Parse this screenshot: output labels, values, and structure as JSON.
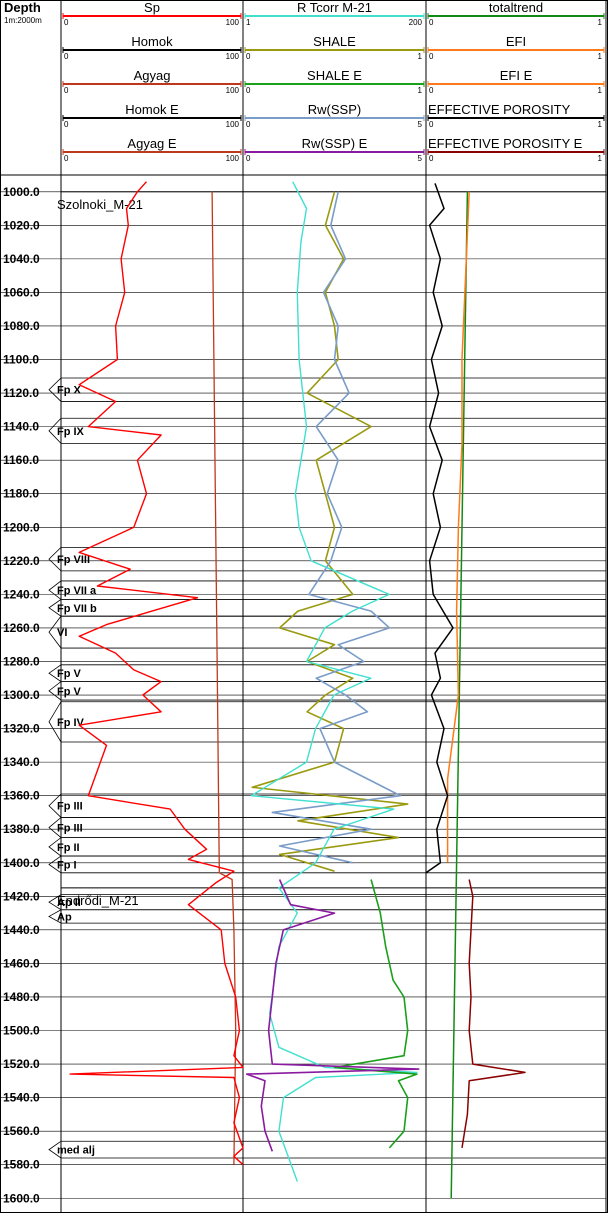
{
  "header": {
    "depth_title": "Depth",
    "depth_scale": "1m:2000m",
    "columns": [
      {
        "curves": [
          {
            "name": "Sp",
            "min": "0",
            "max": "100",
            "color": "#ff0000"
          },
          {
            "name": "Homok",
            "min": "0",
            "max": "100",
            "color": "#000000"
          },
          {
            "name": "Agyag",
            "min": "0",
            "max": "100",
            "color": "#c0381c"
          },
          {
            "name": "Homok  E",
            "min": "0",
            "max": "100",
            "color": "#000000"
          },
          {
            "name": "Agyag  E",
            "min": "0",
            "max": "100",
            "color": "#c0381c"
          }
        ]
      },
      {
        "curves": [
          {
            "name": "R  Tcorr  M-21",
            "min": "1",
            "max": "200",
            "color": "#40e0d0"
          },
          {
            "name": "SHALE",
            "min": "0",
            "max": "1",
            "color": "#9a9a10"
          },
          {
            "name": "SHALE  E",
            "min": "0",
            "max": "1",
            "color": "#1aa01a"
          },
          {
            "name": "Rw(SSP)",
            "min": "0",
            "max": "5",
            "color": "#7a9cc8"
          },
          {
            "name": "Rw(SSP)  E",
            "min": "0",
            "max": "5",
            "color": "#8a1aa0"
          }
        ]
      },
      {
        "curves": [
          {
            "name": "totaltrend",
            "min": "0",
            "max": "1",
            "color": "#138a13"
          },
          {
            "name": "EFI",
            "min": "0",
            "max": "1",
            "color": "#ff7a1a"
          },
          {
            "name": "EFI  E",
            "min": "0",
            "max": "1",
            "color": "#ff7a1a"
          },
          {
            "name": "EFFECTIVE  POROSITY",
            "min": "0",
            "max": "1",
            "color": "#000000"
          },
          {
            "name": "EFFECTIVE  POROSITY  E",
            "min": "0",
            "max": "1",
            "color": "#8b0000"
          }
        ]
      }
    ]
  },
  "colors": {
    "sp": "#ff0000",
    "agyag": "#c0381c",
    "rt": "#40e0d0",
    "shale": "#9a9a10",
    "shale_e": "#1aa01a",
    "rw": "#7a9cc8",
    "rw_e": "#8a1aa0",
    "efi": "#ff7a1a",
    "totaltrend": "#138a13",
    "eff_por": "#000000",
    "eff_por_e": "#8b0000"
  },
  "chart_data": {
    "type": "well-log",
    "depth_ticks": [
      "1000.0",
      "1020.0",
      "1040.0",
      "1060.0",
      "1080.0",
      "1100.0",
      "1120.0",
      "1140.0",
      "1160.0",
      "1180.0",
      "1200.0",
      "1220.0",
      "1240.0",
      "1260.0",
      "1280.0",
      "1300.0",
      "1320.0",
      "1340.0",
      "1360.0",
      "1380.0",
      "1400.0",
      "1420.0",
      "1440.0",
      "1460.0",
      "1480.0",
      "1500.0",
      "1520.0",
      "1540.0",
      "1560.0",
      "1580.0",
      "1600.0"
    ],
    "depth_range": [
      990,
      1607
    ],
    "formations": [
      {
        "name": "Szolnoki_M-21",
        "depth": 1000
      },
      {
        "name": "Endrődi_M-21",
        "depth": 1415
      }
    ],
    "zones": [
      {
        "label": "Fp X",
        "top": 1111,
        "bottom": 1125
      },
      {
        "label": "Fp IX",
        "top": 1135,
        "bottom": 1150
      },
      {
        "label": "Fp VIII",
        "top": 1212,
        "bottom": 1226
      },
      {
        "label": "Fp VII a",
        "top": 1232,
        "bottom": 1243
      },
      {
        "label": "Fp VII b",
        "top": 1243,
        "bottom": 1253
      },
      {
        "label": "VI",
        "top": 1253,
        "bottom": 1272
      },
      {
        "label": "Fp V",
        "top": 1282,
        "bottom": 1292
      },
      {
        "label": "Fp V",
        "top": 1292,
        "bottom": 1303
      },
      {
        "label": "Fp IV",
        "top": 1304,
        "bottom": 1328
      },
      {
        "label": "Fp III",
        "top": 1359,
        "bottom": 1373
      },
      {
        "label": "Fp III",
        "top": 1373,
        "bottom": 1385
      },
      {
        "label": "Fp II",
        "top": 1385,
        "bottom": 1396
      },
      {
        "label": "Fp I",
        "top": 1396,
        "bottom": 1406
      },
      {
        "label": "Ap II",
        "top": 1419,
        "bottom": 1428
      },
      {
        "label": "Ap",
        "top": 1428,
        "bottom": 1436
      },
      {
        "label": "med alj",
        "top": 1566,
        "bottom": 1576
      }
    ],
    "series": [
      {
        "key": "sp",
        "points": [
          [
            994,
            47
          ],
          [
            1000,
            42
          ],
          [
            1010,
            36
          ],
          [
            1020,
            37
          ],
          [
            1040,
            33
          ],
          [
            1060,
            35
          ],
          [
            1080,
            30
          ],
          [
            1100,
            31
          ],
          [
            1115,
            10
          ],
          [
            1125,
            30
          ],
          [
            1140,
            15
          ],
          [
            1145,
            55
          ],
          [
            1160,
            42
          ],
          [
            1180,
            47
          ],
          [
            1200,
            40
          ],
          [
            1215,
            10
          ],
          [
            1225,
            38
          ],
          [
            1235,
            20
          ],
          [
            1242,
            75
          ],
          [
            1250,
            50
          ],
          [
            1258,
            25
          ],
          [
            1265,
            10
          ],
          [
            1275,
            30
          ],
          [
            1285,
            40
          ],
          [
            1292,
            55
          ],
          [
            1300,
            45
          ],
          [
            1310,
            55
          ],
          [
            1318,
            10
          ],
          [
            1330,
            25
          ],
          [
            1345,
            20
          ],
          [
            1360,
            15
          ],
          [
            1368,
            60
          ],
          [
            1380,
            68
          ],
          [
            1392,
            80
          ],
          [
            1398,
            70
          ],
          [
            1405,
            95
          ],
          [
            1412,
            85
          ],
          [
            1425,
            70
          ],
          [
            1440,
            88
          ],
          [
            1460,
            90
          ],
          [
            1480,
            96
          ],
          [
            1500,
            98
          ],
          [
            1515,
            95
          ],
          [
            1522,
            100
          ],
          [
            1526,
            5
          ],
          [
            1528,
            95
          ],
          [
            1540,
            98
          ],
          [
            1555,
            95
          ],
          [
            1570,
            100
          ],
          [
            1575,
            95
          ],
          [
            1580,
            100
          ]
        ]
      },
      {
        "key": "agyag",
        "points": [
          [
            1000,
            83
          ],
          [
            1100,
            84
          ],
          [
            1200,
            85
          ],
          [
            1300,
            86
          ],
          [
            1406,
            87
          ],
          [
            1410,
            94
          ],
          [
            1440,
            95
          ],
          [
            1500,
            96
          ],
          [
            1580,
            95
          ]
        ]
      },
      {
        "key": "rt",
        "points": [
          [
            994,
            55
          ],
          [
            1010,
            70
          ],
          [
            1030,
            64
          ],
          [
            1060,
            60
          ],
          [
            1100,
            62
          ],
          [
            1140,
            70
          ],
          [
            1180,
            58
          ],
          [
            1200,
            62
          ],
          [
            1220,
            75
          ],
          [
            1240,
            160
          ],
          [
            1250,
            120
          ],
          [
            1260,
            90
          ],
          [
            1280,
            70
          ],
          [
            1290,
            140
          ],
          [
            1300,
            100
          ],
          [
            1320,
            80
          ],
          [
            1340,
            70
          ],
          [
            1355,
            25
          ],
          [
            1360,
            10
          ],
          [
            1368,
            165
          ],
          [
            1380,
            100
          ],
          [
            1400,
            80
          ],
          [
            1415,
            40
          ],
          [
            1430,
            60
          ],
          [
            1450,
            40
          ],
          [
            1470,
            35
          ],
          [
            1490,
            30
          ],
          [
            1510,
            40
          ],
          [
            1522,
            90
          ],
          [
            1525,
            190
          ],
          [
            1528,
            80
          ],
          [
            1540,
            45
          ],
          [
            1560,
            40
          ],
          [
            1575,
            50
          ],
          [
            1590,
            60
          ]
        ]
      },
      {
        "key": "shale",
        "points": [
          [
            1000,
            0.5
          ],
          [
            1020,
            0.45
          ],
          [
            1040,
            0.55
          ],
          [
            1060,
            0.45
          ],
          [
            1080,
            0.5
          ],
          [
            1100,
            0.52
          ],
          [
            1120,
            0.35
          ],
          [
            1140,
            0.7
          ],
          [
            1160,
            0.4
          ],
          [
            1180,
            0.45
          ],
          [
            1200,
            0.5
          ],
          [
            1220,
            0.45
          ],
          [
            1240,
            0.6
          ],
          [
            1250,
            0.3
          ],
          [
            1260,
            0.2
          ],
          [
            1270,
            0.5
          ],
          [
            1280,
            0.35
          ],
          [
            1290,
            0.6
          ],
          [
            1300,
            0.45
          ],
          [
            1310,
            0.35
          ],
          [
            1320,
            0.55
          ],
          [
            1340,
            0.5
          ],
          [
            1355,
            0.05
          ],
          [
            1365,
            0.9
          ],
          [
            1375,
            0.3
          ],
          [
            1385,
            0.85
          ],
          [
            1395,
            0.2
          ],
          [
            1405,
            0.5
          ]
        ]
      },
      {
        "key": "shale_e",
        "points": [
          [
            1410,
            0.7
          ],
          [
            1430,
            0.75
          ],
          [
            1450,
            0.78
          ],
          [
            1470,
            0.82
          ],
          [
            1480,
            0.88
          ],
          [
            1500,
            0.9
          ],
          [
            1515,
            0.88
          ],
          [
            1522,
            0.5
          ],
          [
            1526,
            0.95
          ],
          [
            1530,
            0.85
          ],
          [
            1540,
            0.9
          ],
          [
            1560,
            0.88
          ],
          [
            1570,
            0.8
          ]
        ]
      },
      {
        "key": "rw",
        "points": [
          [
            1000,
            2.6
          ],
          [
            1020,
            2.4
          ],
          [
            1040,
            2.8
          ],
          [
            1060,
            2.2
          ],
          [
            1080,
            2.6
          ],
          [
            1100,
            2.5
          ],
          [
            1120,
            2.9
          ],
          [
            1140,
            2.0
          ],
          [
            1160,
            2.6
          ],
          [
            1180,
            2.3
          ],
          [
            1200,
            2.7
          ],
          [
            1220,
            2.4
          ],
          [
            1240,
            1.8
          ],
          [
            1250,
            3.5
          ],
          [
            1260,
            4.0
          ],
          [
            1270,
            2.6
          ],
          [
            1280,
            3.3
          ],
          [
            1290,
            2.0
          ],
          [
            1300,
            2.8
          ],
          [
            1310,
            3.4
          ],
          [
            1320,
            2.1
          ],
          [
            1340,
            2.5
          ],
          [
            1360,
            4.3
          ],
          [
            1370,
            0.8
          ],
          [
            1380,
            3.5
          ],
          [
            1390,
            1.0
          ],
          [
            1400,
            3.0
          ]
        ]
      },
      {
        "key": "rw_e",
        "points": [
          [
            1410,
            1.0
          ],
          [
            1425,
            1.3
          ],
          [
            1430,
            2.5
          ],
          [
            1440,
            1.1
          ],
          [
            1460,
            0.9
          ],
          [
            1480,
            0.8
          ],
          [
            1500,
            0.7
          ],
          [
            1520,
            0.8
          ],
          [
            1523,
            4.8
          ],
          [
            1526,
            0.1
          ],
          [
            1530,
            0.6
          ],
          [
            1545,
            0.5
          ],
          [
            1560,
            0.6
          ],
          [
            1572,
            0.8
          ]
        ]
      },
      {
        "key": "totaltrend",
        "points": [
          [
            1000,
            0.23
          ],
          [
            1200,
            0.2
          ],
          [
            1400,
            0.17
          ],
          [
            1600,
            0.14
          ]
        ]
      },
      {
        "key": "efi",
        "points": [
          [
            1000,
            0.24
          ],
          [
            1050,
            0.22
          ],
          [
            1100,
            0.2
          ],
          [
            1150,
            0.2
          ],
          [
            1200,
            0.18
          ],
          [
            1250,
            0.17
          ],
          [
            1300,
            0.18
          ],
          [
            1350,
            0.12
          ],
          [
            1400,
            0.12
          ]
        ]
      },
      {
        "key": "eff_por",
        "points": [
          [
            995,
            0.05
          ],
          [
            1010,
            0.1
          ],
          [
            1020,
            0.02
          ],
          [
            1040,
            0.08
          ],
          [
            1060,
            0.04
          ],
          [
            1080,
            0.09
          ],
          [
            1100,
            0.03
          ],
          [
            1120,
            0.07
          ],
          [
            1140,
            0.02
          ],
          [
            1160,
            0.09
          ],
          [
            1180,
            0.04
          ],
          [
            1200,
            0.08
          ],
          [
            1220,
            0.02
          ],
          [
            1240,
            0.04
          ],
          [
            1260,
            0.15
          ],
          [
            1275,
            0.05
          ],
          [
            1290,
            0.08
          ],
          [
            1300,
            0.03
          ],
          [
            1320,
            0.1
          ],
          [
            1340,
            0.06
          ],
          [
            1360,
            0.12
          ],
          [
            1380,
            0.06
          ],
          [
            1400,
            0.08
          ],
          [
            1406,
            0.0
          ]
        ]
      },
      {
        "key": "eff_por_e",
        "points": [
          [
            1410,
            0.24
          ],
          [
            1420,
            0.26
          ],
          [
            1440,
            0.25
          ],
          [
            1460,
            0.24
          ],
          [
            1480,
            0.25
          ],
          [
            1500,
            0.24
          ],
          [
            1520,
            0.26
          ],
          [
            1525,
            0.55
          ],
          [
            1530,
            0.24
          ],
          [
            1550,
            0.23
          ],
          [
            1570,
            0.2
          ]
        ]
      }
    ]
  }
}
